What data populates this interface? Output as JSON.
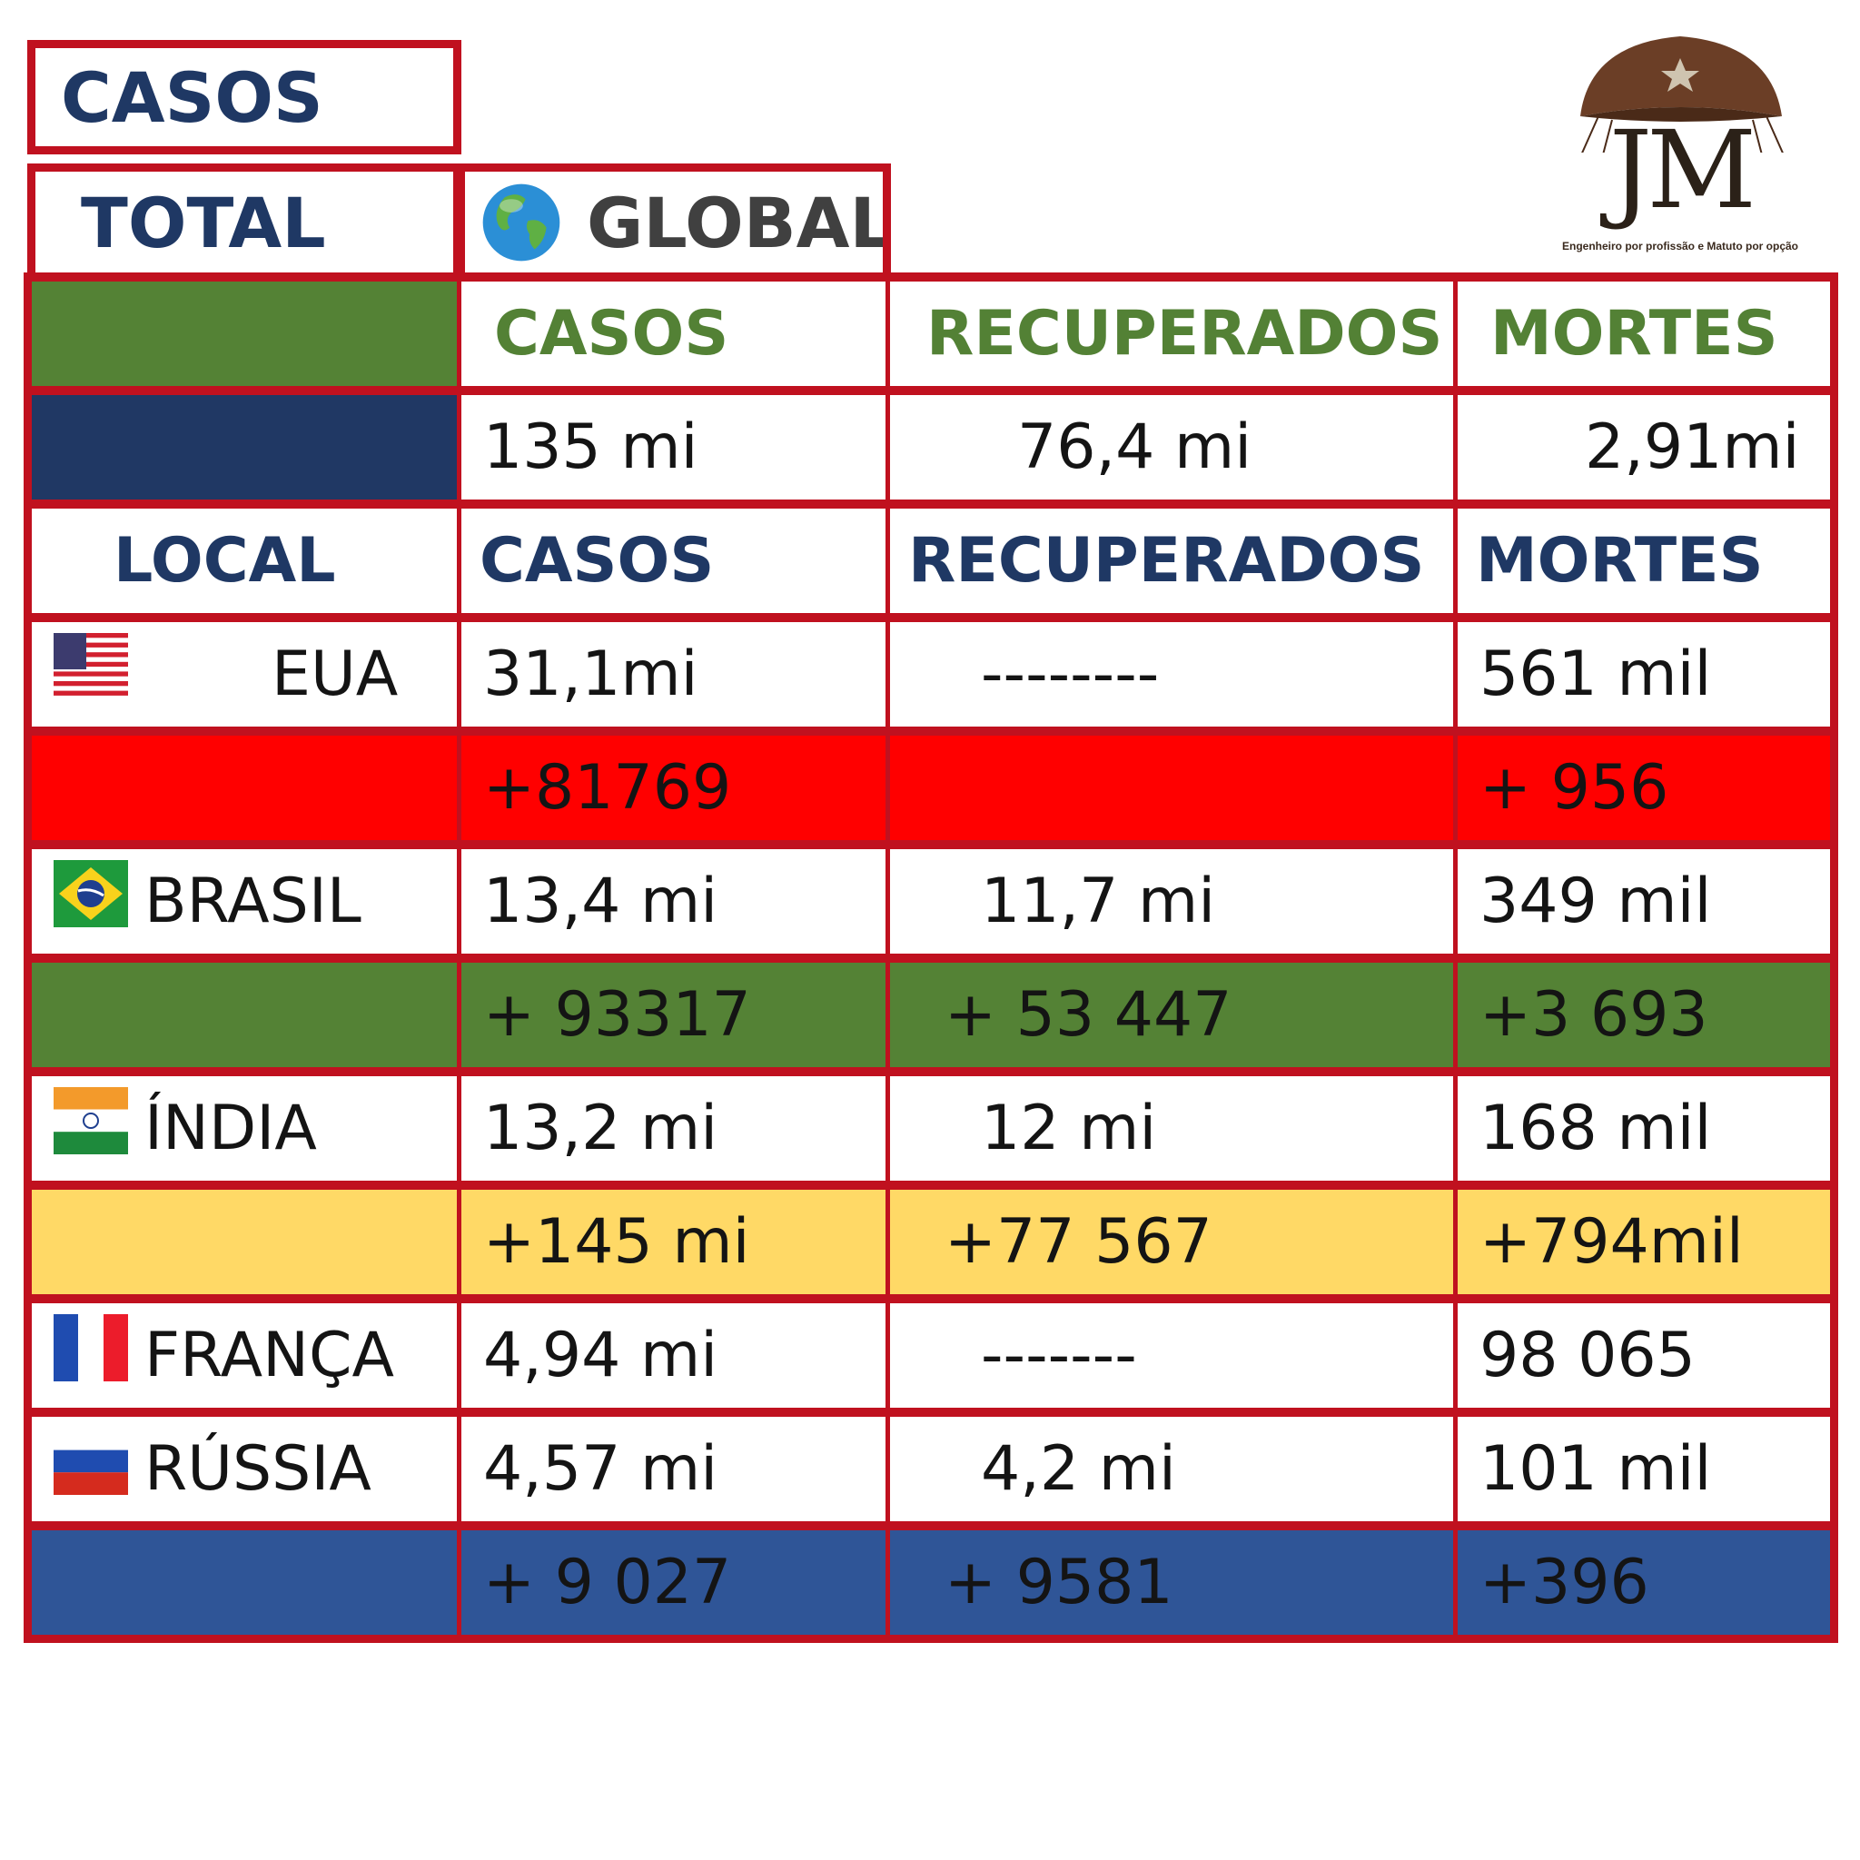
{
  "header": {
    "casos_label": "CASOS",
    "total_label": "TOTAL",
    "global_label": "GLOBAL",
    "globe_icon": "globe-icon"
  },
  "logo": {
    "monogram": "JM",
    "tagline": "Engenheiro por profissão e Matuto por opção"
  },
  "global_table": {
    "columns": [
      "CASOS",
      "RECUPERADOS",
      "MORTES"
    ],
    "values": [
      "135 mi",
      "76,4 mi",
      "2,91mi"
    ]
  },
  "local_table": {
    "label": "LOCAL",
    "columns": [
      "CASOS",
      "RECUPERADOS",
      "MORTES"
    ],
    "countries": [
      {
        "name": "EUA",
        "flag": "usa-flag",
        "totals": [
          "31,1mi",
          "--------",
          "561 mil"
        ],
        "daily": [
          "+81769",
          "",
          "+ 956"
        ],
        "daily_color": "#ff0000"
      },
      {
        "name": "BRASIL",
        "flag": "brazil-flag",
        "totals": [
          "13,4 mi",
          "11,7  mi",
          "349 mil"
        ],
        "daily": [
          "+ 93317",
          "+ 53 447",
          "+3 693"
        ],
        "daily_color": "#548235"
      },
      {
        "name": "ÍNDIA",
        "flag": "india-flag",
        "totals": [
          "13,2 mi",
          "12 mi",
          "168 mil"
        ],
        "daily": [
          "+145 mi",
          "+77 567",
          "+794mil"
        ],
        "daily_color": "#ffd966"
      },
      {
        "name": "FRANÇA",
        "flag": "france-flag",
        "totals": [
          "4,94 mi",
          "-------",
          "98 065"
        ]
      },
      {
        "name": "RÚSSIA",
        "flag": "russia-flag",
        "totals": [
          "4,57 mi",
          "4,2 mi",
          "101 mil"
        ],
        "daily": [
          "+ 9 027",
          "+ 9581",
          "+396"
        ],
        "daily_color": "#2f5597"
      }
    ]
  },
  "colors": {
    "border": "#c0111f",
    "header_navy": "#1f3864",
    "header_green": "#538135"
  }
}
